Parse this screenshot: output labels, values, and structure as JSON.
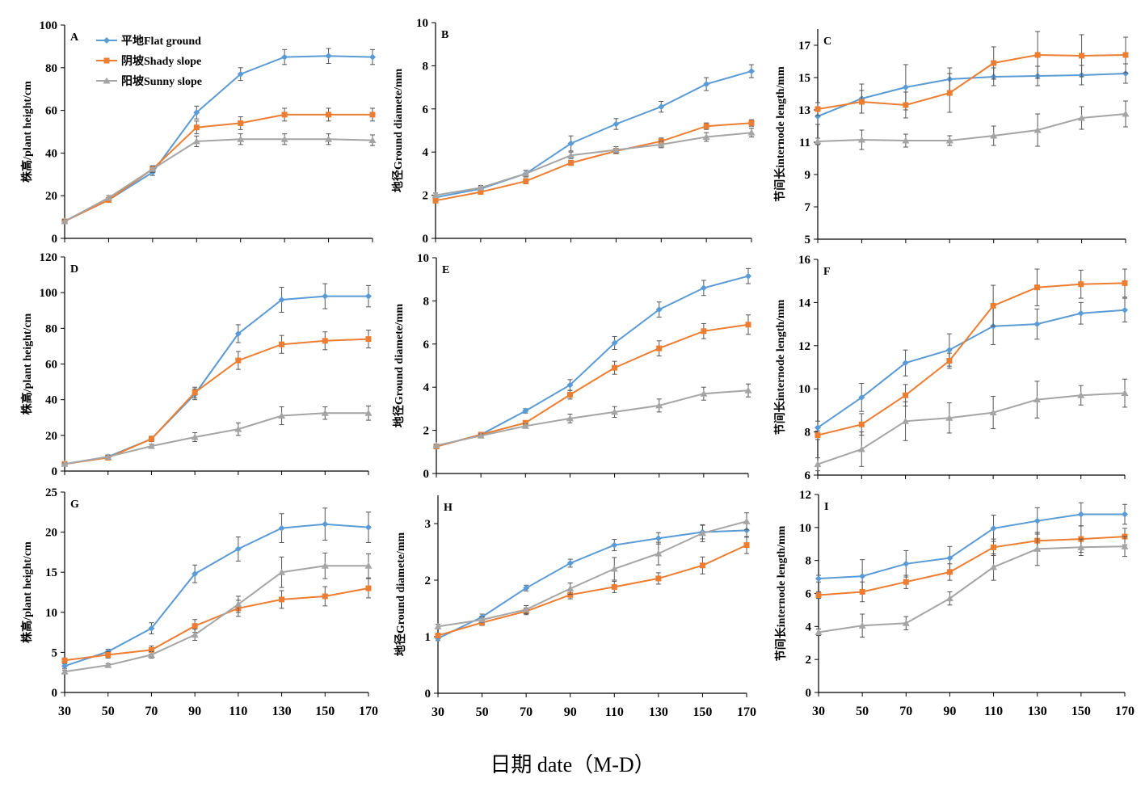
{
  "figure": {
    "xtitle": "日期 date（M-D）"
  },
  "legend": {
    "position": "top-left of panel A",
    "items": [
      {
        "label": "平地Flat ground",
        "color": "#5B9BD5",
        "marker": "diamond"
      },
      {
        "label": "阴坡Shady slope",
        "color": "#ED7D31",
        "marker": "square"
      },
      {
        "label": "阳坡Sunny slope",
        "color": "#A5A5A5",
        "marker": "triangle"
      }
    ]
  },
  "chart_data": [
    {
      "type": "line",
      "panel": "A",
      "ylabel": "株高/plant height/cm",
      "x": [
        30,
        50,
        70,
        90,
        110,
        130,
        150,
        170
      ],
      "ylim": [
        0,
        100
      ],
      "yticks": [
        0,
        20,
        40,
        60,
        80,
        100
      ],
      "xticks_shown": false,
      "grid": false,
      "series": [
        {
          "name": "平地Flat ground",
          "values": [
            8,
            18,
            31,
            59,
            77,
            85,
            85.5,
            85
          ],
          "err": [
            0.8,
            1,
            1.5,
            3,
            3,
            3.5,
            3.5,
            3.5
          ]
        },
        {
          "name": "阴坡Shady slope",
          "values": [
            8,
            18,
            32.5,
            52,
            54,
            58,
            58,
            58
          ],
          "err": [
            0.8,
            1,
            1.5,
            3,
            3,
            3,
            3,
            3
          ]
        },
        {
          "name": "阳坡Sunny slope",
          "values": [
            8,
            19,
            32.5,
            45.5,
            46.5,
            46.5,
            46.5,
            46
          ],
          "err": [
            0.8,
            1,
            1.5,
            2.5,
            2.5,
            2.5,
            2.5,
            2.5
          ]
        }
      ]
    },
    {
      "type": "line",
      "panel": "B",
      "ylabel": "地径Ground diamete/mm",
      "x": [
        30,
        50,
        70,
        90,
        110,
        130,
        150,
        170
      ],
      "ylim": [
        0,
        10
      ],
      "yticks": [
        0,
        2,
        4,
        6,
        8,
        10
      ],
      "xticks_shown": false,
      "grid": false,
      "series": [
        {
          "name": "平地Flat ground",
          "values": [
            1.9,
            2.3,
            3.0,
            4.4,
            5.3,
            6.1,
            7.15,
            7.75
          ],
          "err": [
            0.1,
            0.1,
            0.15,
            0.35,
            0.25,
            0.25,
            0.3,
            0.3
          ]
        },
        {
          "name": "阴坡Shady slope",
          "values": [
            1.75,
            2.15,
            2.65,
            3.5,
            4.05,
            4.5,
            5.2,
            5.35
          ],
          "err": [
            0.1,
            0.1,
            0.12,
            0.12,
            0.12,
            0.15,
            0.15,
            0.15
          ]
        },
        {
          "name": "阳坡Sunny slope",
          "values": [
            2.0,
            2.35,
            3.0,
            3.85,
            4.1,
            4.35,
            4.7,
            4.9
          ],
          "err": [
            0.1,
            0.1,
            0.15,
            0.15,
            0.15,
            0.15,
            0.2,
            0.2
          ]
        }
      ]
    },
    {
      "type": "line",
      "panel": "C",
      "ylabel": "节间长internode length/mm",
      "x": [
        30,
        50,
        70,
        90,
        110,
        130,
        150,
        170
      ],
      "ylim": [
        5,
        18
      ],
      "yticks": [
        5,
        7,
        9,
        11,
        13,
        15,
        17
      ],
      "xticks_shown": false,
      "grid": false,
      "series": [
        {
          "name": "平地Flat ground",
          "values": [
            12.6,
            13.7,
            14.4,
            14.9,
            15.05,
            15.1,
            15.15,
            15.25
          ],
          "err": [
            0.5,
            0.9,
            1.4,
            0.7,
            0.55,
            0.6,
            0.6,
            0.6
          ]
        },
        {
          "name": "阴坡Shady slope",
          "values": [
            13.05,
            13.5,
            13.3,
            14.05,
            15.9,
            16.4,
            16.35,
            16.4
          ],
          "err": [
            0.4,
            0.7,
            0.8,
            1.2,
            1.0,
            1.45,
            1.3,
            1.1
          ]
        },
        {
          "name": "阳坡Sunny slope",
          "values": [
            11.05,
            11.15,
            11.1,
            11.1,
            11.4,
            11.75,
            12.5,
            12.75
          ],
          "err": [
            0.2,
            0.6,
            0.4,
            0.3,
            0.6,
            1.0,
            0.7,
            0.8
          ]
        }
      ]
    },
    {
      "type": "line",
      "panel": "D",
      "ylabel": "株高/plant height/cm",
      "x": [
        30,
        50,
        70,
        90,
        110,
        130,
        150,
        170
      ],
      "ylim": [
        0,
        120
      ],
      "yticks": [
        0,
        20,
        40,
        60,
        80,
        100,
        120
      ],
      "xticks_shown": false,
      "grid": false,
      "series": [
        {
          "name": "平地Flat ground",
          "values": [
            4,
            8,
            18,
            43,
            77,
            96,
            98,
            98
          ],
          "err": [
            0.5,
            1,
            1.5,
            3,
            5,
            7,
            7,
            6
          ]
        },
        {
          "name": "阴坡Shady slope",
          "values": [
            4,
            7.5,
            18,
            44,
            62,
            71,
            73,
            74
          ],
          "err": [
            0.5,
            1,
            1.5,
            3,
            5,
            5,
            5,
            5
          ]
        },
        {
          "name": "阳坡Sunny slope",
          "values": [
            4,
            8,
            14,
            19,
            23.5,
            31,
            32.5,
            32.5
          ],
          "err": [
            0.5,
            1,
            1,
            2.5,
            3.5,
            5,
            3.5,
            4
          ]
        }
      ]
    },
    {
      "type": "line",
      "panel": "E",
      "ylabel": "地径Ground diamete/mm",
      "x": [
        30,
        50,
        70,
        90,
        110,
        130,
        150,
        170
      ],
      "ylim": [
        0,
        10
      ],
      "yticks": [
        0,
        2,
        4,
        6,
        8,
        10
      ],
      "xticks_shown": false,
      "grid": false,
      "series": [
        {
          "name": "平地Flat ground",
          "values": [
            1.25,
            1.8,
            2.9,
            4.1,
            6.05,
            7.6,
            8.6,
            9.15
          ],
          "err": [
            0.05,
            0.08,
            0.1,
            0.25,
            0.3,
            0.35,
            0.35,
            0.35
          ]
        },
        {
          "name": "阴坡Shady slope",
          "values": [
            1.25,
            1.8,
            2.35,
            3.65,
            4.9,
            5.8,
            6.6,
            6.9
          ],
          "err": [
            0.05,
            0.08,
            0.1,
            0.2,
            0.3,
            0.35,
            0.35,
            0.45
          ]
        },
        {
          "name": "阳坡Sunny slope",
          "values": [
            1.3,
            1.75,
            2.2,
            2.55,
            2.85,
            3.15,
            3.7,
            3.85
          ],
          "err": [
            0.05,
            0.08,
            0.1,
            0.2,
            0.25,
            0.3,
            0.3,
            0.3
          ]
        }
      ]
    },
    {
      "type": "line",
      "panel": "F",
      "ylabel": "节间长internode length/mm",
      "x": [
        30,
        50,
        70,
        90,
        110,
        130,
        150,
        170
      ],
      "ylim": [
        6,
        16
      ],
      "yticks": [
        6,
        8,
        10,
        12,
        14,
        16
      ],
      "xticks_shown": false,
      "grid": false,
      "series": [
        {
          "name": "平地Flat ground",
          "values": [
            8.2,
            9.6,
            11.2,
            11.8,
            12.9,
            13.0,
            13.5,
            13.65
          ],
          "err": [
            0.3,
            0.65,
            0.6,
            0.75,
            0.85,
            0.7,
            0.5,
            0.55
          ]
        },
        {
          "name": "阴坡Shady slope",
          "values": [
            7.85,
            8.35,
            9.7,
            11.3,
            13.85,
            14.7,
            14.85,
            14.9
          ],
          "err": [
            0.2,
            0.5,
            0.5,
            0.35,
            0.95,
            0.85,
            0.65,
            0.65
          ]
        },
        {
          "name": "阳坡Sunny slope",
          "values": [
            6.5,
            7.2,
            8.5,
            8.65,
            8.9,
            9.5,
            9.7,
            9.8
          ],
          "err": [
            0.3,
            0.8,
            0.9,
            0.7,
            0.75,
            0.85,
            0.45,
            0.65
          ]
        }
      ]
    },
    {
      "type": "line",
      "panel": "G",
      "ylabel": "株高/plant height/cm",
      "x": [
        30,
        50,
        70,
        90,
        110,
        130,
        150,
        170
      ],
      "ylim": [
        0,
        25
      ],
      "yticks": [
        0,
        5,
        10,
        15,
        20,
        25
      ],
      "xticks_shown": true,
      "grid": false,
      "series": [
        {
          "name": "平地Flat ground",
          "values": [
            3.3,
            5.1,
            8.0,
            14.8,
            17.9,
            20.5,
            21.0,
            20.6
          ],
          "err": [
            0.3,
            0.3,
            0.7,
            1.1,
            1.5,
            1.8,
            2.0,
            1.9
          ]
        },
        {
          "name": "阴坡Shady slope",
          "values": [
            4.0,
            4.7,
            5.3,
            8.3,
            10.5,
            11.6,
            12.0,
            13.0
          ],
          "err": [
            0.3,
            0.4,
            0.5,
            0.8,
            1.0,
            1.1,
            1.2,
            1.2
          ]
        },
        {
          "name": "阳坡Sunny slope",
          "values": [
            2.6,
            3.4,
            4.7,
            7.2,
            11.0,
            15.0,
            15.8,
            15.8
          ],
          "err": [
            0.2,
            0.2,
            0.4,
            0.7,
            1.0,
            1.9,
            1.6,
            1.5
          ]
        }
      ]
    },
    {
      "type": "line",
      "panel": "H",
      "ylabel": "地径Ground diamete/mm",
      "x": [
        30,
        50,
        70,
        90,
        110,
        130,
        150,
        170
      ],
      "ylim": [
        0,
        3.5
      ],
      "yticks": [
        0,
        1,
        2,
        3
      ],
      "xticks_shown": true,
      "grid": false,
      "series": [
        {
          "name": "平地Flat ground",
          "values": [
            0.97,
            1.35,
            1.86,
            2.3,
            2.62,
            2.74,
            2.85,
            2.88
          ],
          "err": [
            0.04,
            0.05,
            0.05,
            0.07,
            0.1,
            0.1,
            0.12,
            0.12
          ]
        },
        {
          "name": "阴坡Shady slope",
          "values": [
            1.02,
            1.25,
            1.45,
            1.74,
            1.88,
            2.03,
            2.26,
            2.62
          ],
          "err": [
            0.04,
            0.05,
            0.06,
            0.07,
            0.1,
            0.1,
            0.15,
            0.15
          ]
        },
        {
          "name": "阳坡Sunny slope",
          "values": [
            1.18,
            1.3,
            1.48,
            1.85,
            2.2,
            2.47,
            2.83,
            3.04
          ],
          "err": [
            0.04,
            0.05,
            0.07,
            0.1,
            0.2,
            0.2,
            0.15,
            0.15
          ]
        }
      ]
    },
    {
      "type": "line",
      "panel": "I",
      "ylabel": "节间长internode length/mm",
      "x": [
        30,
        50,
        70,
        90,
        110,
        130,
        150,
        170
      ],
      "ylim": [
        0,
        12
      ],
      "yticks": [
        0,
        2,
        4,
        6,
        8,
        10,
        12
      ],
      "xticks_shown": true,
      "grid": false,
      "series": [
        {
          "name": "平地Flat ground",
          "values": [
            6.9,
            7.05,
            7.8,
            8.15,
            9.95,
            10.4,
            10.8,
            10.8
          ],
          "err": [
            0.2,
            1.0,
            0.8,
            0.7,
            0.8,
            0.8,
            0.7,
            0.6
          ]
        },
        {
          "name": "阴坡Shady slope",
          "values": [
            5.9,
            6.1,
            6.7,
            7.3,
            8.8,
            9.2,
            9.3,
            9.45
          ],
          "err": [
            0.2,
            0.6,
            0.4,
            0.5,
            0.5,
            0.5,
            0.8,
            0.5
          ]
        },
        {
          "name": "阳坡Sunny slope",
          "values": [
            3.65,
            4.05,
            4.2,
            5.7,
            7.6,
            8.7,
            8.8,
            8.85
          ],
          "err": [
            0.2,
            0.7,
            0.4,
            0.4,
            0.8,
            1.0,
            0.5,
            0.6
          ]
        }
      ]
    }
  ]
}
